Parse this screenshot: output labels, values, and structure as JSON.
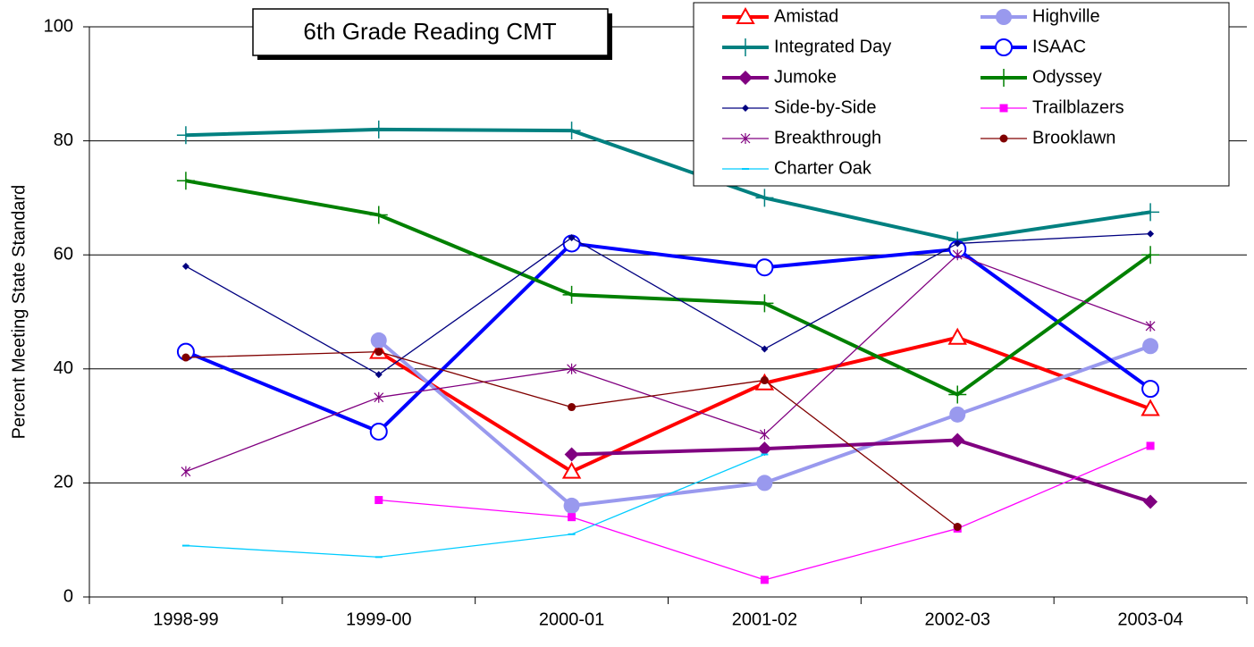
{
  "chart_data": {
    "type": "line",
    "title": "6th Grade Reading CMT",
    "y_label": "Percent Meeting State Standard",
    "categories": [
      "1998-99",
      "1999-00",
      "2000-01",
      "2001-02",
      "2002-03",
      "2003-04"
    ],
    "ylim": [
      0,
      100
    ],
    "yticks": [
      0,
      20,
      40,
      60,
      80,
      100
    ],
    "grid": true,
    "series": [
      {
        "name": "Amistad",
        "color": "#ff0000",
        "marker": "triangle-open",
        "line_width": 4,
        "values": [
          null,
          43,
          22,
          37.5,
          45.5,
          33
        ]
      },
      {
        "name": "Highville",
        "color": "#9999ee",
        "marker": "circle",
        "line_width": 4,
        "values": [
          null,
          45,
          16,
          20,
          32,
          44
        ]
      },
      {
        "name": "Integrated Day",
        "color": "#008080",
        "marker": "plus",
        "line_width": 4,
        "values": [
          81,
          82,
          81.8,
          70,
          62.5,
          67.5
        ]
      },
      {
        "name": "ISAAC",
        "color": "#0000ff",
        "marker": "circle-open",
        "line_width": 4,
        "values": [
          43,
          29,
          62,
          57.8,
          61,
          36.5
        ]
      },
      {
        "name": "Jumoke",
        "color": "#800080",
        "marker": "diamond",
        "line_width": 4,
        "values": [
          null,
          null,
          25,
          26,
          27.5,
          16.7
        ]
      },
      {
        "name": "Odyssey",
        "color": "#008000",
        "marker": "plus",
        "line_width": 4,
        "values": [
          73,
          67,
          53,
          51.5,
          35.5,
          60
        ]
      },
      {
        "name": "Side-by-Side",
        "color": "#000080",
        "marker": "diamond-small",
        "line_width": 1.3,
        "values": [
          58,
          39,
          63,
          43.5,
          62,
          63.7
        ]
      },
      {
        "name": "Trailblazers",
        "color": "#ff00ff",
        "marker": "square",
        "line_width": 1.3,
        "values": [
          null,
          17,
          14,
          3,
          12,
          26.5
        ]
      },
      {
        "name": "Breakthrough",
        "color": "#800080",
        "marker": "star",
        "line_width": 1.3,
        "values": [
          22,
          35,
          40,
          28.5,
          60,
          47.5
        ]
      },
      {
        "name": "Brooklawn",
        "color": "#800000",
        "marker": "dot",
        "line_width": 1.3,
        "values": [
          42,
          43,
          33.3,
          38,
          12.3,
          null
        ]
      },
      {
        "name": "Charter Oak",
        "color": "#00ccff",
        "marker": "dash",
        "line_width": 1.3,
        "values": [
          9,
          7,
          11,
          25,
          null,
          null
        ]
      }
    ]
  }
}
